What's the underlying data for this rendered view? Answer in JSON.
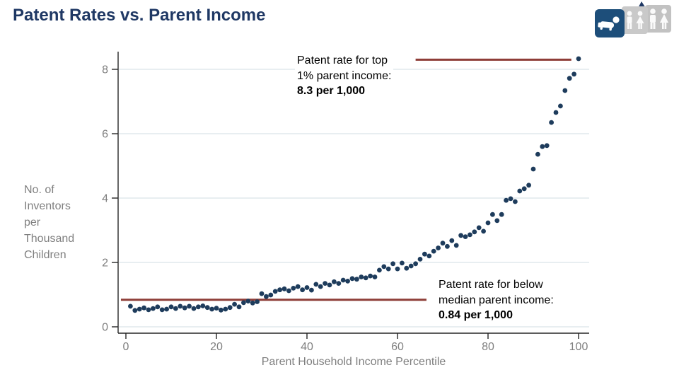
{
  "header": {
    "title": "Patent Rates vs. Parent Income",
    "icons": [
      "baby-icon",
      "children-icon",
      "adults-icon"
    ]
  },
  "colors": {
    "title": "#1f3864",
    "point": "#1e3c5c",
    "reference_line": "#8e3d37",
    "gridline": "#e8eef1",
    "axis": "#262626",
    "axis_text": "#7f7f7f",
    "baby_tile": "#1d4e7a",
    "gray_tile_1": "#c9c9c9",
    "gray_tile_2": "#c2c2c2"
  },
  "chart_data": {
    "type": "scatter",
    "title": "Patent Rates vs. Parent Income",
    "xlabel": "Parent Household Income Percentile",
    "ylabel": "No. of Inventors per Thousand Children",
    "xlim": [
      0,
      100
    ],
    "ylim": [
      0,
      8.5
    ],
    "xticks": [
      0,
      20,
      40,
      60,
      80,
      100
    ],
    "yticks": [
      0,
      2,
      4,
      6,
      8
    ],
    "grid": "horizontal",
    "legend": "none",
    "x": [
      1,
      2,
      3,
      4,
      5,
      6,
      7,
      8,
      9,
      10,
      11,
      12,
      13,
      14,
      15,
      16,
      17,
      18,
      19,
      20,
      21,
      22,
      23,
      24,
      25,
      26,
      27,
      28,
      29,
      30,
      31,
      32,
      33,
      34,
      35,
      36,
      37,
      38,
      39,
      40,
      41,
      42,
      43,
      44,
      45,
      46,
      47,
      48,
      49,
      50,
      51,
      52,
      53,
      54,
      55,
      56,
      57,
      58,
      59,
      60,
      61,
      62,
      63,
      64,
      65,
      66,
      67,
      68,
      69,
      70,
      71,
      72,
      73,
      74,
      75,
      76,
      77,
      78,
      79,
      80,
      81,
      82,
      83,
      84,
      85,
      86,
      87,
      88,
      89,
      90,
      91,
      92,
      93,
      94,
      95,
      96,
      97,
      98,
      99,
      100
    ],
    "y": [
      0.64,
      0.51,
      0.55,
      0.59,
      0.53,
      0.57,
      0.62,
      0.53,
      0.55,
      0.62,
      0.57,
      0.64,
      0.59,
      0.64,
      0.57,
      0.62,
      0.65,
      0.6,
      0.55,
      0.58,
      0.52,
      0.55,
      0.6,
      0.7,
      0.62,
      0.75,
      0.8,
      0.74,
      0.78,
      1.03,
      0.94,
      0.99,
      1.1,
      1.15,
      1.18,
      1.12,
      1.2,
      1.25,
      1.15,
      1.22,
      1.14,
      1.32,
      1.25,
      1.35,
      1.3,
      1.4,
      1.35,
      1.45,
      1.42,
      1.5,
      1.48,
      1.55,
      1.52,
      1.58,
      1.55,
      1.76,
      1.87,
      1.8,
      1.96,
      1.8,
      1.98,
      1.82,
      1.89,
      1.96,
      2.1,
      2.26,
      2.2,
      2.35,
      2.45,
      2.6,
      2.5,
      2.68,
      2.53,
      2.84,
      2.8,
      2.86,
      2.95,
      3.08,
      2.97,
      3.23,
      3.49,
      3.3,
      3.49,
      3.93,
      3.98,
      3.89,
      4.22,
      4.29,
      4.4,
      4.9,
      5.36,
      5.6,
      5.63,
      6.35,
      6.66,
      6.86,
      7.34,
      7.72,
      7.85,
      8.33
    ],
    "reference_lines": [
      {
        "value": 8.3,
        "x_from": 64,
        "x_to": 98.4
      },
      {
        "value": 0.84,
        "x_from": -1.1,
        "x_to": 66.4
      }
    ],
    "annotations": [
      {
        "line1": "Patent rate for top",
        "line2": "1% parent income:",
        "value_line": "8.3 per 1,000"
      },
      {
        "line1": "Patent rate for below",
        "line2": "median parent income:",
        "value_line": "0.84 per 1,000"
      }
    ]
  }
}
